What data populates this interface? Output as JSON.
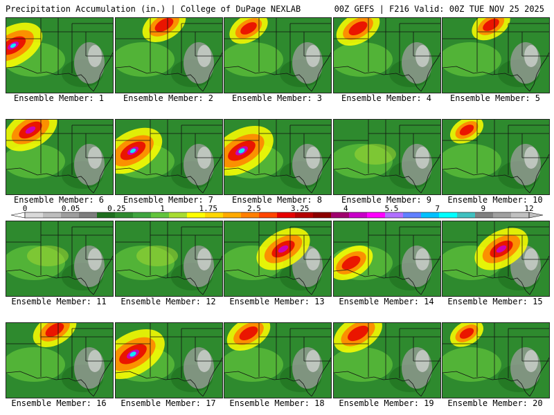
{
  "header": {
    "left": "Precipitation Accumulation (in.) | College of DuPage NEXLAB",
    "right": "00Z GEFS | F216 Valid: 00Z TUE NOV 25 2025"
  },
  "member_label_prefix": "Ensemble Member: ",
  "members": [
    {
      "id": "1",
      "label": "Ensemble Member: 1",
      "heavy": "far-west",
      "intensity": 0.9
    },
    {
      "id": "2",
      "label": "Ensemble Member: 2",
      "heavy": "north",
      "intensity": 0.6
    },
    {
      "id": "3",
      "label": "Ensemble Member: 3",
      "heavy": "northwest",
      "intensity": 0.5
    },
    {
      "id": "4",
      "label": "Ensemble Member: 4",
      "heavy": "northwest",
      "intensity": 0.6
    },
    {
      "id": "5",
      "label": "Ensemble Member: 5",
      "heavy": "north",
      "intensity": 0.5
    },
    {
      "id": "6",
      "label": "Ensemble Member: 6",
      "heavy": "northwest",
      "intensity": 0.8
    },
    {
      "id": "7",
      "label": "Ensemble Member: 7",
      "heavy": "west",
      "intensity": 0.9
    },
    {
      "id": "8",
      "label": "Ensemble Member: 8",
      "heavy": "west",
      "intensity": 1.0
    },
    {
      "id": "9",
      "label": "Ensemble Member: 9",
      "heavy": "none",
      "intensity": 0.2
    },
    {
      "id": "10",
      "label": "Ensemble Member: 10",
      "heavy": "northwest",
      "intensity": 0.4
    },
    {
      "id": "11",
      "label": "Ensemble Member: 11",
      "heavy": "none",
      "intensity": 0.3
    },
    {
      "id": "12",
      "label": "Ensemble Member: 12",
      "heavy": "none",
      "intensity": 0.3
    },
    {
      "id": "13",
      "label": "Ensemble Member: 13",
      "heavy": "center",
      "intensity": 0.8
    },
    {
      "id": "14",
      "label": "Ensemble Member: 14",
      "heavy": "southwest",
      "intensity": 0.6
    },
    {
      "id": "15",
      "label": "Ensemble Member: 15",
      "heavy": "center",
      "intensity": 0.8
    },
    {
      "id": "16",
      "label": "Ensemble Member: 16",
      "heavy": "north",
      "intensity": 0.6
    },
    {
      "id": "17",
      "label": "Ensemble Member: 17",
      "heavy": "west",
      "intensity": 1.0
    },
    {
      "id": "18",
      "label": "Ensemble Member: 18",
      "heavy": "northwest",
      "intensity": 0.6
    },
    {
      "id": "19",
      "label": "Ensemble Member: 19",
      "heavy": "northwest",
      "intensity": 0.7
    },
    {
      "id": "20",
      "label": "Ensemble Member: 20",
      "heavy": "northwest",
      "intensity": 0.4
    }
  ],
  "colorbar": {
    "ticks": [
      "0",
      "0.05",
      "0.25",
      "1",
      "1.75",
      "2.5",
      "3.25",
      "4",
      "5.5",
      "7",
      "9",
      "12"
    ],
    "colors": [
      "#d9d9d9",
      "#bdbdbd",
      "#9e9e9e",
      "#7d7d7d",
      "#1e6e1e",
      "#2e8a2e",
      "#3fa53f",
      "#62c43c",
      "#a8dc32",
      "#ffff00",
      "#ffd700",
      "#ffaa00",
      "#ff7f00",
      "#ff4500",
      "#e60000",
      "#b40000",
      "#8b0000",
      "#a0006e",
      "#c800c8",
      "#ff00ff",
      "#b070ff",
      "#6080ff",
      "#00c0ff",
      "#00ffff",
      "#40c0c0",
      "#808080",
      "#a0a0a0",
      "#c0c0c0"
    ]
  }
}
